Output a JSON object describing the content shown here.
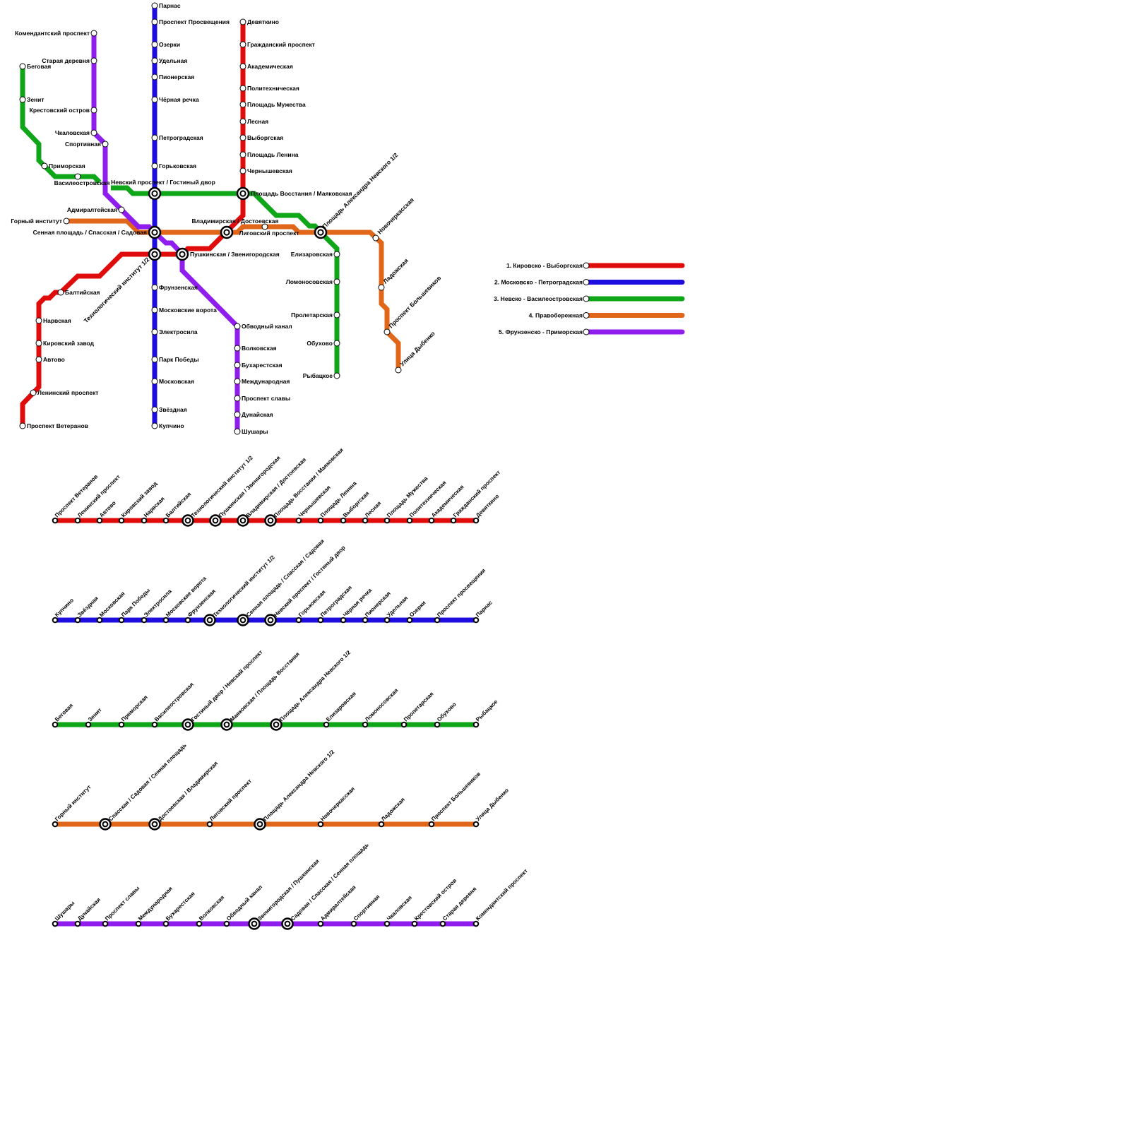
{
  "lines": [
    {
      "id": "red",
      "legend": "1. Кировско - Выборгская",
      "color": "#e00c0c",
      "map_stations": [
        "Проспект Ветеранов",
        "Ленинский проспект",
        "Автово",
        "Кировский завод",
        "Нарвская",
        "Балтийская",
        "Чернышевская",
        "Площадь Ленина",
        "Выборгская",
        "Лесная",
        "Площадь Мужества",
        "Политехническая",
        "Академическая",
        "Гражданский проспект",
        "Девяткино"
      ],
      "strip": [
        {
          "name": "Проспект Ветеранов"
        },
        {
          "name": "Ленинский проспект"
        },
        {
          "name": "Автово"
        },
        {
          "name": "Кировский завод"
        },
        {
          "name": "Нарвская"
        },
        {
          "name": "Балтийская"
        },
        {
          "name": "Технологический институт 1/2",
          "transfer": true
        },
        {
          "name": "Пушкинская / Звенигородская",
          "transfer": true
        },
        {
          "name": "Владимирская / Достоевская",
          "transfer": true
        },
        {
          "name": "Площадь Восстания / Маяковская",
          "transfer": true
        },
        {
          "name": "Чернышевская"
        },
        {
          "name": "Площадь Ленина"
        },
        {
          "name": "Выборгская"
        },
        {
          "name": "Лесная"
        },
        {
          "name": "Площадь Мужества"
        },
        {
          "name": "Политехническая"
        },
        {
          "name": "Академическая"
        },
        {
          "name": "Гражданский проспект"
        },
        {
          "name": "Девяткино"
        }
      ]
    },
    {
      "id": "blue",
      "legend": "2. Московско - Петроградская",
      "color": "#1d0ddf",
      "map_stations": [
        "Парнас",
        "Проспект Просвещения",
        "Озерки",
        "Удельная",
        "Пионерская",
        "Чёрная речка",
        "Петроградская",
        "Горьковская",
        "Фрунзенская",
        "Московские ворота",
        "Электросила",
        "Парк Победы",
        "Московская",
        "Звёздная",
        "Купчино"
      ],
      "strip": [
        {
          "name": "Купчино"
        },
        {
          "name": "Звёздная"
        },
        {
          "name": "Московская"
        },
        {
          "name": "Парк Победы"
        },
        {
          "name": "Электросила"
        },
        {
          "name": "Московские ворота"
        },
        {
          "name": "Фрунзенская"
        },
        {
          "name": "Технологический институт 1/2",
          "transfer": true
        },
        {
          "name": "Сенная площадь / Спасская / Садовая",
          "transfer": true
        },
        {
          "name": "Невский проспект / Гостиный двор",
          "transfer": true
        },
        {
          "name": "Горьковская"
        },
        {
          "name": "Петроградская"
        },
        {
          "name": "Чёрная речка"
        },
        {
          "name": "Пионерская"
        },
        {
          "name": "Удельная"
        },
        {
          "name": "Озерки"
        },
        {
          "name": "Проспект просвещения"
        },
        {
          "name": "Парнас"
        }
      ]
    },
    {
      "id": "green",
      "legend": "3. Невско - Василеостровская",
      "color": "#0fa619",
      "map_stations": [
        "Беговая",
        "Зенит",
        "Приморская",
        "Василеостровская",
        "Елизаровская",
        "Ломоносовская",
        "Пролетарская",
        "Обухово",
        "Рыбацкое"
      ],
      "strip": [
        {
          "name": "Беговая"
        },
        {
          "name": "Зенит"
        },
        {
          "name": "Приморская"
        },
        {
          "name": "Василеостровская"
        },
        {
          "name": "Гостиный двор / Невский проспект",
          "transfer": true
        },
        {
          "name": "Маяковская / Площадь Восстания",
          "transfer": true
        },
        {
          "name": "Площадь Александра Невского 1/2",
          "transfer": true
        },
        {
          "name": "Елизаровская"
        },
        {
          "name": "Ломоносовская"
        },
        {
          "name": "Пролетарская"
        },
        {
          "name": "Обухово"
        },
        {
          "name": "Рыбацкое"
        }
      ]
    },
    {
      "id": "orange",
      "legend": "4. Правобережная",
      "color": "#e0661a",
      "map_stations": [
        "Горный институт",
        "Лиговский проспект",
        "Новочеркасская",
        "Ладожская",
        "Проспект Большевиков",
        "Улица Дыбенко"
      ],
      "strip": [
        {
          "name": "Горный институт"
        },
        {
          "name": "Спасская / Садовая / Сенная площадь",
          "transfer": true
        },
        {
          "name": "Достоевская / Владимирская",
          "transfer": true
        },
        {
          "name": "Лиговский проспект"
        },
        {
          "name": "Площадь Александра Невского 1/2",
          "transfer": true
        },
        {
          "name": "Новочеркасская"
        },
        {
          "name": "Ладожская"
        },
        {
          "name": "Проспект Большевиков"
        },
        {
          "name": "Улица Дыбенко"
        }
      ]
    },
    {
      "id": "purple",
      "legend": "5. Фрунзенско - Приморская",
      "color": "#8f1ded",
      "map_stations": [
        "Комендантский проспект",
        "Старая деревня",
        "Крестовский остров",
        "Чкаловская",
        "Спортивная",
        "Адмиралтейская",
        "Обводный канал",
        "Волковская",
        "Бухарестская",
        "Международная",
        "Проспект славы",
        "Дунайская",
        "Шушары"
      ],
      "strip": [
        {
          "name": "Шушары"
        },
        {
          "name": "Дунайская"
        },
        {
          "name": "Проспект славы"
        },
        {
          "name": "Международная"
        },
        {
          "name": "Бухарестская"
        },
        {
          "name": "Волковская"
        },
        {
          "name": "Обводный канал"
        },
        {
          "name": "Звенигородская / Пушкинская",
          "transfer": true
        },
        {
          "name": "Садовая / Спасская / Сенная площадь",
          "transfer": true
        },
        {
          "name": "Адмиралтейская"
        },
        {
          "name": "Спортивная"
        },
        {
          "name": "Чкаловская"
        },
        {
          "name": "Крестовский остров"
        },
        {
          "name": "Старая деревня"
        },
        {
          "name": "Комендантский проспект"
        }
      ]
    }
  ],
  "map_transfers": [
    "Невский проспект / Гостиный двор",
    "Площадь Восстания / Маяковская",
    "Сенная площадь / Спасская / Садовая",
    "Владимирская / Достоевская",
    "Технологический институт 1/2",
    "Пушкинская / Звенигородская",
    "Площадь Александра Невского 1/2"
  ]
}
